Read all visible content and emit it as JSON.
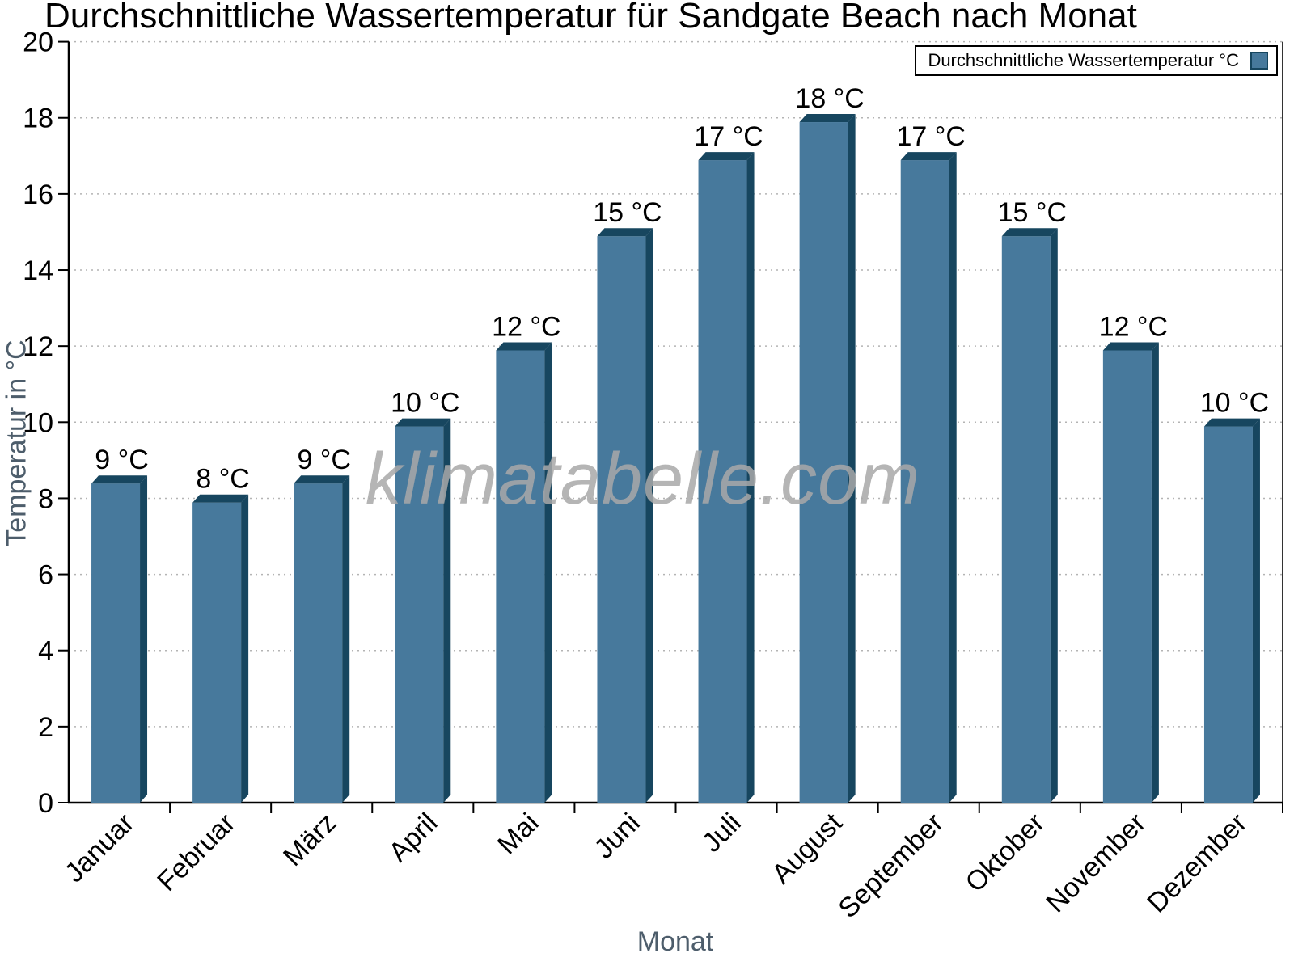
{
  "page": {
    "title": "Durchschnittliche Wassertemperatur für Sandgate Beach nach Monat"
  },
  "legend": {
    "label": "Durchschnittliche Wassertemperatur °C",
    "position": "top-right"
  },
  "watermark": {
    "text": "klimatabelle.com"
  },
  "chart_data": {
    "type": "bar",
    "title": "Durchschnittliche Wassertemperatur für Sandgate Beach nach Monat",
    "xlabel": "Monat",
    "ylabel": "Temperatur in °C",
    "categories": [
      "Januar",
      "Februar",
      "März",
      "April",
      "Mai",
      "Juni",
      "Juli",
      "August",
      "September",
      "Oktober",
      "November",
      "Dezember"
    ],
    "series": [
      {
        "name": "Durchschnittliche Wassertemperatur °C",
        "values": [
          8.6,
          8.1,
          8.6,
          10.1,
          12.1,
          15.1,
          17.1,
          18.1,
          17.1,
          15.1,
          12.1,
          10.1
        ],
        "value_labels": [
          "9 °C",
          "8 °C",
          "9 °C",
          "10 °C",
          "12 °C",
          "15 °C",
          "17 °C",
          "18 °C",
          "17 °C",
          "15 °C",
          "12 °C",
          "10 °C"
        ]
      }
    ],
    "ylim": [
      0,
      20
    ],
    "y_tick_step": 2,
    "y_ticks": [
      0,
      2,
      4,
      6,
      8,
      10,
      12,
      14,
      16,
      18,
      20
    ],
    "grid": "horizontal-dotted",
    "bar_style": "3d-extruded",
    "x_label_rotation_deg": -45,
    "legend_position": "top-right",
    "colors": {
      "bar_face": "#47799C",
      "bar_edge": "#17465F",
      "grid": "#b4b4b4",
      "axis": "#000000",
      "axis_title": "#4d5d6b",
      "tick_label": "#000000",
      "value_label": "#000000",
      "watermark": "#a9a9a9"
    }
  }
}
